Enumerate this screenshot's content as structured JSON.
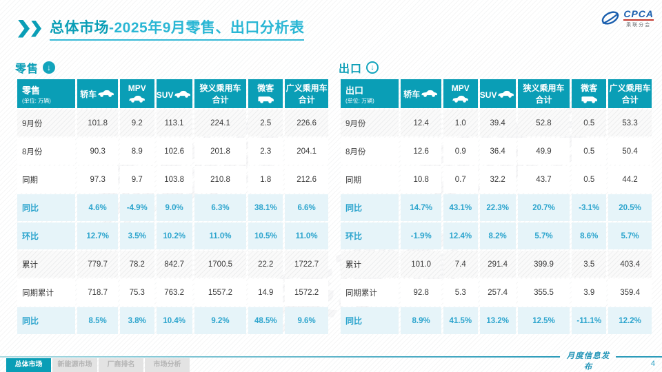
{
  "title": {
    "strong": "总体市场",
    "rest": "-2025年9月零售、出口分析表"
  },
  "logo": {
    "name": "CPCA",
    "subtitle": "乘联分会"
  },
  "accent_colors": {
    "teal": "#0a9eb6",
    "light_cyan_text": "#2ba4cd",
    "percent_row_bg": "#e6f4f9"
  },
  "tables": [
    {
      "section_label": "零售",
      "section_icon": "circle-down-arrow-filled-icon",
      "corner_label": "零售",
      "unit_label": "(单位: 万辆)",
      "columns": [
        {
          "label": "轿车",
          "icon": "sedan-car-icon"
        },
        {
          "label": "MPV",
          "icon": "mpv-car-icon"
        },
        {
          "label": "SUV",
          "icon": "suv-car-icon"
        },
        {
          "label": "狭义乘用车",
          "label2": "合计",
          "icon": null
        },
        {
          "label": "微客",
          "icon": "minivan-icon"
        },
        {
          "label": "广义乘用车",
          "label2": "合计",
          "icon": null
        }
      ],
      "rows": [
        {
          "label": "9月份",
          "type": "value",
          "shade": true,
          "values": [
            "101.8",
            "9.2",
            "113.1",
            "224.1",
            "2.5",
            "226.6"
          ]
        },
        {
          "label": "8月份",
          "type": "value",
          "shade": false,
          "values": [
            "90.3",
            "8.9",
            "102.6",
            "201.8",
            "2.3",
            "204.1"
          ]
        },
        {
          "label": "同期",
          "type": "value",
          "shade": false,
          "values": [
            "97.3",
            "9.7",
            "103.8",
            "210.8",
            "1.8",
            "212.6"
          ]
        },
        {
          "label": "同比",
          "type": "percent",
          "shade": false,
          "values": [
            "4.6%",
            "-4.9%",
            "9.0%",
            "6.3%",
            "38.1%",
            "6.6%"
          ]
        },
        {
          "label": "环比",
          "type": "percent",
          "shade": false,
          "values": [
            "12.7%",
            "3.5%",
            "10.2%",
            "11.0%",
            "10.5%",
            "11.0%"
          ]
        },
        {
          "label": "累计",
          "type": "value",
          "shade": true,
          "values": [
            "779.7",
            "78.2",
            "842.7",
            "1700.5",
            "22.2",
            "1722.7"
          ]
        },
        {
          "label": "同期累计",
          "type": "value",
          "shade": false,
          "values": [
            "718.7",
            "75.3",
            "763.2",
            "1557.2",
            "14.9",
            "1572.2"
          ]
        },
        {
          "label": "同比",
          "type": "percent",
          "shade": false,
          "values": [
            "8.5%",
            "3.8%",
            "10.4%",
            "9.2%",
            "48.5%",
            "9.6%"
          ]
        }
      ]
    },
    {
      "section_label": "出口",
      "section_icon": "circle-down-arrow-outline-icon",
      "corner_label": "出口",
      "unit_label": "(单位: 万辆)",
      "columns": [
        {
          "label": "轿车",
          "icon": "sedan-car-icon"
        },
        {
          "label": "MPV",
          "icon": "mpv-car-icon"
        },
        {
          "label": "SUV",
          "icon": "suv-car-icon"
        },
        {
          "label": "狭义乘用车",
          "label2": "合计",
          "icon": null
        },
        {
          "label": "微客",
          "icon": "minivan-icon"
        },
        {
          "label": "广义乘用车",
          "label2": "合计",
          "icon": null
        }
      ],
      "rows": [
        {
          "label": "9月份",
          "type": "value",
          "shade": true,
          "values": [
            "12.4",
            "1.0",
            "39.4",
            "52.8",
            "0.5",
            "53.3"
          ]
        },
        {
          "label": "8月份",
          "type": "value",
          "shade": false,
          "values": [
            "12.6",
            "0.9",
            "36.4",
            "49.9",
            "0.5",
            "50.4"
          ]
        },
        {
          "label": "同期",
          "type": "value",
          "shade": false,
          "values": [
            "10.8",
            "0.7",
            "32.2",
            "43.7",
            "0.5",
            "44.2"
          ]
        },
        {
          "label": "同比",
          "type": "percent",
          "shade": false,
          "values": [
            "14.7%",
            "43.1%",
            "22.3%",
            "20.7%",
            "-3.1%",
            "20.5%"
          ]
        },
        {
          "label": "环比",
          "type": "percent",
          "shade": false,
          "values": [
            "-1.9%",
            "12.4%",
            "8.2%",
            "5.7%",
            "8.6%",
            "5.7%"
          ]
        },
        {
          "label": "累计",
          "type": "value",
          "shade": true,
          "values": [
            "101.0",
            "7.4",
            "291.4",
            "399.9",
            "3.5",
            "403.4"
          ]
        },
        {
          "label": "同期累计",
          "type": "value",
          "shade": false,
          "values": [
            "92.8",
            "5.3",
            "257.4",
            "355.5",
            "3.9",
            "359.4"
          ]
        },
        {
          "label": "同比",
          "type": "percent",
          "shade": false,
          "values": [
            "8.9%",
            "41.5%",
            "13.2%",
            "12.5%",
            "-11.1%",
            "12.2%"
          ]
        }
      ]
    }
  ],
  "footer": {
    "tabs": [
      {
        "label": "总体市场",
        "active": true
      },
      {
        "label": "新能源市场",
        "active": false
      },
      {
        "label": "厂商排名",
        "active": false
      },
      {
        "label": "市场分析",
        "active": false
      }
    ],
    "publish_label": "月度信息发布",
    "page_number": "4"
  }
}
